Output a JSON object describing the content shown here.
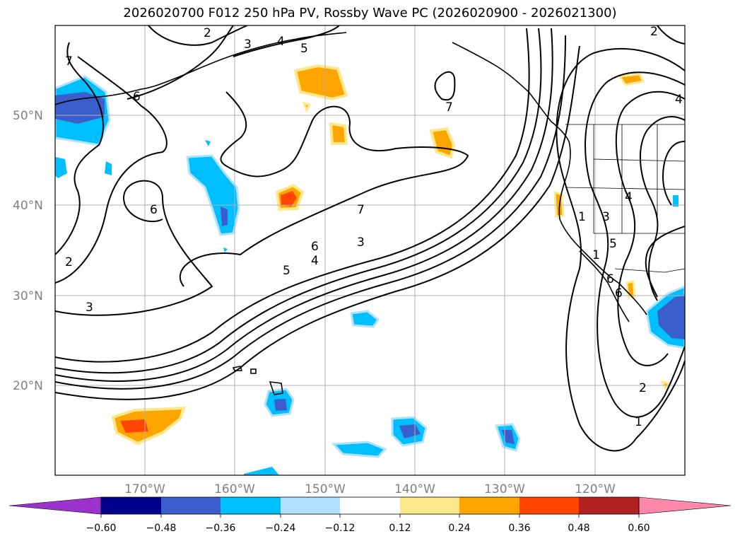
{
  "title": "2026020700 F012 250 hPa PV, Rossby Wave PC (2026020900 - 2026021300)",
  "lat_labels": [
    "50°N",
    "40°N",
    "30°N",
    "20°N"
  ],
  "lon_labels": [
    "170°W",
    "160°W",
    "150°W",
    "140°W",
    "130°W",
    "120°W"
  ],
  "colorbar": {
    "tick_labels": [
      "−0.60",
      "−0.48",
      "−0.36",
      "−0.24",
      "−0.12",
      "0.12",
      "0.24",
      "0.36",
      "0.48",
      "0.60"
    ],
    "colors": [
      "#9933cc",
      "#00008b",
      "#3a5fcd",
      "#00bfff",
      "#b0e2ff",
      "#ffffff",
      "#fde98b",
      "#ffa500",
      "#ff4500",
      "#b22222",
      "#ff88aa"
    ]
  },
  "contour_labels": [
    "2",
    "3",
    "4",
    "5",
    "2",
    "7",
    "6",
    "6",
    "7",
    "2",
    "3",
    "7",
    "6",
    "5",
    "4",
    "3",
    "1",
    "3",
    "4",
    "5",
    "6",
    "2",
    "1",
    "4",
    "1",
    "6"
  ]
}
